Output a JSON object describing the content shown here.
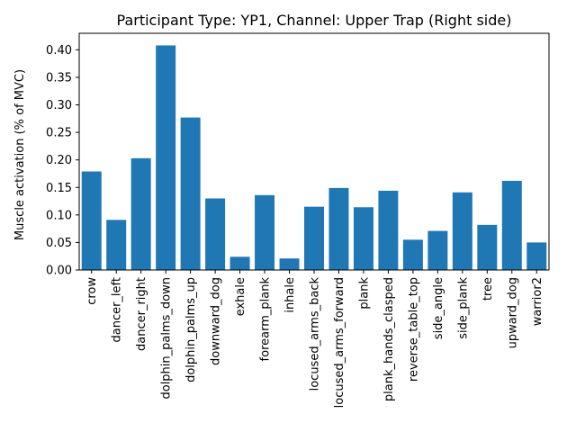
{
  "chart_data": {
    "type": "bar",
    "title": "Participant Type: YP1, Channel: Upper Trap (Right side)",
    "xlabel": "",
    "ylabel": "Muscle activation (% of MVC)",
    "ylim": [
      0,
      0.43
    ],
    "yticks": [
      "0.00",
      "0.05",
      "0.10",
      "0.15",
      "0.20",
      "0.25",
      "0.30",
      "0.35",
      "0.40"
    ],
    "bar_color": "#1f77b4",
    "grid": false,
    "legend": "none",
    "categories": [
      "crow",
      "dancer_left",
      "dancer_right",
      "dolphin_palms_down",
      "dolphin_palms_up",
      "downward_dog",
      "exhale",
      "forearm_plank",
      "inhale",
      "locused_arms_back",
      "locused_arms_forward",
      "plank",
      "plank_hands_clasped",
      "reverse_table_top",
      "side_angle",
      "side_plank",
      "tree",
      "upward_dog",
      "warrior2"
    ],
    "values": [
      0.179,
      0.091,
      0.203,
      0.408,
      0.277,
      0.13,
      0.024,
      0.136,
      0.021,
      0.115,
      0.149,
      0.114,
      0.144,
      0.055,
      0.071,
      0.141,
      0.082,
      0.162,
      0.05
    ]
  }
}
